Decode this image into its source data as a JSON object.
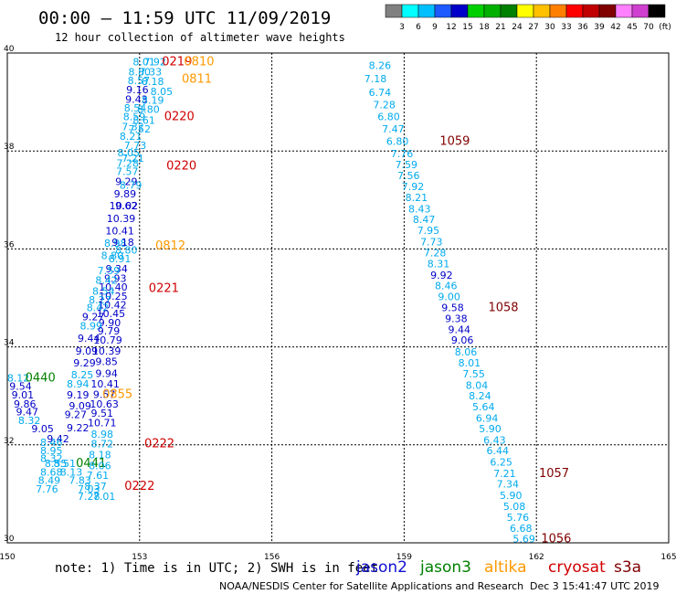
{
  "title": "00:00 – 11:59 UTC 11/09/2019",
  "subtitle": "12 hour collection of altimeter wave heights",
  "note": "note: 1) Time is in UTC; 2) SWH is in feet",
  "missions": [
    {
      "name": "jason2",
      "color": "#1010d0"
    },
    {
      "name": "jason3",
      "color": "#008000"
    },
    {
      "name": "altika",
      "color": "#ff9900"
    },
    {
      "name": "cryosat",
      "color": "#d00000"
    },
    {
      "name": "s3a",
      "color": "#800000"
    }
  ],
  "footer_left": "NOAA/NESDIS Center for Satellite Applications and Research",
  "footer_right": "Dec  3 15:41:47 UTC 2019",
  "colorbar": {
    "labels": [
      "3",
      "6",
      "9",
      "12",
      "15",
      "18",
      "21",
      "24",
      "27",
      "30",
      "33",
      "36",
      "39",
      "42",
      "45",
      "70",
      "(ft)"
    ],
    "colors": [
      "#808080",
      "#00ffff",
      "#00bfff",
      "#1e5aff",
      "#0000c8",
      "#00d000",
      "#00b000",
      "#008000",
      "#ffff00",
      "#ffc000",
      "#ff8000",
      "#ff0000",
      "#c00000",
      "#800000",
      "#ff80ff",
      "#d040d0",
      "#000000"
    ]
  },
  "chart_data": {
    "type": "scatter",
    "xlim": [
      150,
      165
    ],
    "ylim": [
      30,
      40
    ],
    "xticks": [
      "150",
      "153",
      "156",
      "159",
      "162",
      "165"
    ],
    "yticks": [
      "30",
      "32",
      "34",
      "36",
      "38",
      "40"
    ],
    "grid": true,
    "points": [
      {
        "x": 153.1,
        "y": 39.82,
        "v": "8.01",
        "c": "#00aaee"
      },
      {
        "x": 153.35,
        "y": 39.82,
        "v": "7.92",
        "c": "#00aaee"
      },
      {
        "x": 153.25,
        "y": 39.62,
        "v": "7.33",
        "c": "#00aaee"
      },
      {
        "x": 153.0,
        "y": 39.62,
        "v": "8.80",
        "c": "#00aaee"
      },
      {
        "x": 152.98,
        "y": 39.44,
        "v": "8.57",
        "c": "#00aaee"
      },
      {
        "x": 153.3,
        "y": 39.42,
        "v": "8.18",
        "c": "#00aaee"
      },
      {
        "x": 152.95,
        "y": 39.25,
        "v": "9.16",
        "c": "#0000c8"
      },
      {
        "x": 153.5,
        "y": 39.22,
        "v": "8.05",
        "c": "#00aaee"
      },
      {
        "x": 152.93,
        "y": 39.06,
        "v": "9.43",
        "c": "#0000c8"
      },
      {
        "x": 153.3,
        "y": 39.04,
        "v": "8.19",
        "c": "#00aaee"
      },
      {
        "x": 152.9,
        "y": 38.88,
        "v": "8.54",
        "c": "#00aaee"
      },
      {
        "x": 153.2,
        "y": 38.85,
        "v": "8.80",
        "c": "#00aaee"
      },
      {
        "x": 152.88,
        "y": 38.7,
        "v": "8.59",
        "c": "#00aaee"
      },
      {
        "x": 153.1,
        "y": 38.63,
        "v": "8.61",
        "c": "#00aaee"
      },
      {
        "x": 152.85,
        "y": 38.5,
        "v": "7.32",
        "c": "#00aaee"
      },
      {
        "x": 153.0,
        "y": 38.45,
        "v": "7.52",
        "c": "#00aaee"
      },
      {
        "x": 152.8,
        "y": 38.3,
        "v": "8.21",
        "c": "#00aaee"
      },
      {
        "x": 152.9,
        "y": 38.12,
        "v": "7.73",
        "c": "#00aaee"
      },
      {
        "x": 152.75,
        "y": 37.97,
        "v": "8.05",
        "c": "#00aaee"
      },
      {
        "x": 152.85,
        "y": 37.85,
        "v": "7.21",
        "c": "#00aaee"
      },
      {
        "x": 152.73,
        "y": 37.75,
        "v": "7.28",
        "c": "#00aaee"
      },
      {
        "x": 152.72,
        "y": 37.58,
        "v": "7.57",
        "c": "#00aaee"
      },
      {
        "x": 152.7,
        "y": 37.38,
        "v": "9.29",
        "c": "#0000c8"
      },
      {
        "x": 152.8,
        "y": 37.3,
        "v": "8.79",
        "c": "#00aaee"
      },
      {
        "x": 152.67,
        "y": 37.13,
        "v": "9.89",
        "c": "#0000c8"
      },
      {
        "x": 152.64,
        "y": 36.88,
        "v": "10.02",
        "c": "#0000c8"
      },
      {
        "x": 152.7,
        "y": 36.88,
        "v": "9.62",
        "c": "#0000c8"
      },
      {
        "x": 152.58,
        "y": 36.62,
        "v": "10.39",
        "c": "#0000c8"
      },
      {
        "x": 152.55,
        "y": 36.37,
        "v": "10.41",
        "c": "#0000c8"
      },
      {
        "x": 152.45,
        "y": 36.12,
        "v": "8.98",
        "c": "#00aaee"
      },
      {
        "x": 152.62,
        "y": 36.14,
        "v": "9.18",
        "c": "#0000c8"
      },
      {
        "x": 152.7,
        "y": 35.98,
        "v": "8.80",
        "c": "#00aaee"
      },
      {
        "x": 152.38,
        "y": 35.87,
        "v": "8.80",
        "c": "#00aaee"
      },
      {
        "x": 152.55,
        "y": 35.8,
        "v": "8.91",
        "c": "#00aaee"
      },
      {
        "x": 152.48,
        "y": 35.6,
        "v": "9.34",
        "c": "#0000c8"
      },
      {
        "x": 152.3,
        "y": 35.56,
        "v": "7.59",
        "c": "#00aaee"
      },
      {
        "x": 152.45,
        "y": 35.4,
        "v": "9.93",
        "c": "#0000c8"
      },
      {
        "x": 152.25,
        "y": 35.36,
        "v": "8.42",
        "c": "#00aaee"
      },
      {
        "x": 152.4,
        "y": 35.22,
        "v": "10.40",
        "c": "#0000c8"
      },
      {
        "x": 152.18,
        "y": 35.14,
        "v": "8.54",
        "c": "#00aaee"
      },
      {
        "x": 152.4,
        "y": 35.04,
        "v": "10.25",
        "c": "#0000c8"
      },
      {
        "x": 152.1,
        "y": 34.96,
        "v": "8.27",
        "c": "#00aaee"
      },
      {
        "x": 152.38,
        "y": 34.86,
        "v": "10.42",
        "c": "#0000c8"
      },
      {
        "x": 152.05,
        "y": 34.8,
        "v": "8.42",
        "c": "#00aaee"
      },
      {
        "x": 152.35,
        "y": 34.68,
        "v": "10.45",
        "c": "#0000c8"
      },
      {
        "x": 151.95,
        "y": 34.62,
        "v": "9.27",
        "c": "#0000c8"
      },
      {
        "x": 152.32,
        "y": 34.5,
        "v": "9.90",
        "c": "#0000c8"
      },
      {
        "x": 151.9,
        "y": 34.43,
        "v": "8.99",
        "c": "#00aaee"
      },
      {
        "x": 152.3,
        "y": 34.33,
        "v": "9.79",
        "c": "#0000c8"
      },
      {
        "x": 151.85,
        "y": 34.18,
        "v": "9.44",
        "c": "#0000c8"
      },
      {
        "x": 152.28,
        "y": 34.14,
        "v": "10.79",
        "c": "#0000c8"
      },
      {
        "x": 151.8,
        "y": 33.92,
        "v": "9.09",
        "c": "#0000c8"
      },
      {
        "x": 152.25,
        "y": 33.92,
        "v": "10.39",
        "c": "#0000c8"
      },
      {
        "x": 151.75,
        "y": 33.68,
        "v": "9.29",
        "c": "#0000c8"
      },
      {
        "x": 152.25,
        "y": 33.7,
        "v": "9.85",
        "c": "#0000c8"
      },
      {
        "x": 151.7,
        "y": 33.43,
        "v": "8.25",
        "c": "#00aaee"
      },
      {
        "x": 152.25,
        "y": 33.46,
        "v": "9.94",
        "c": "#0000c8"
      },
      {
        "x": 150.25,
        "y": 33.37,
        "v": "8.12",
        "c": "#00aaee"
      },
      {
        "x": 150.75,
        "y": 33.37,
        "v": "0440",
        "c": "#008000",
        "t": true
      },
      {
        "x": 151.6,
        "y": 33.25,
        "v": "8.94",
        "c": "#00aaee"
      },
      {
        "x": 152.22,
        "y": 33.25,
        "v": "10.41",
        "c": "#0000c8"
      },
      {
        "x": 150.3,
        "y": 33.2,
        "v": "9.54",
        "c": "#0000c8"
      },
      {
        "x": 152.2,
        "y": 33.03,
        "v": "9.57",
        "c": "#0000c8"
      },
      {
        "x": 152.5,
        "y": 33.03,
        "v": "0855",
        "c": "#ff9900",
        "t": true
      },
      {
        "x": 150.35,
        "y": 33.02,
        "v": "9.01",
        "c": "#0000c8"
      },
      {
        "x": 151.6,
        "y": 33.02,
        "v": "9.19",
        "c": "#0000c8"
      },
      {
        "x": 150.4,
        "y": 32.84,
        "v": "9.86",
        "c": "#0000c8"
      },
      {
        "x": 151.65,
        "y": 32.8,
        "v": "9.09",
        "c": "#0000c8"
      },
      {
        "x": 152.2,
        "y": 32.84,
        "v": "10.63",
        "c": "#0000c8"
      },
      {
        "x": 150.45,
        "y": 32.68,
        "v": "9.47",
        "c": "#0000c8"
      },
      {
        "x": 151.55,
        "y": 32.62,
        "v": "9.27",
        "c": "#0000c8"
      },
      {
        "x": 152.15,
        "y": 32.65,
        "v": "9.51",
        "c": "#0000c8"
      },
      {
        "x": 150.5,
        "y": 32.5,
        "v": "8.32",
        "c": "#00aaee"
      },
      {
        "x": 151.6,
        "y": 32.35,
        "v": "9.22",
        "c": "#0000c8"
      },
      {
        "x": 152.15,
        "y": 32.45,
        "v": "10.71",
        "c": "#0000c8"
      },
      {
        "x": 150.8,
        "y": 32.33,
        "v": "9.05",
        "c": "#0000c8"
      },
      {
        "x": 151.15,
        "y": 32.13,
        "v": "9.42",
        "c": "#0000c8"
      },
      {
        "x": 152.15,
        "y": 32.22,
        "v": "8.98",
        "c": "#00aaee"
      },
      {
        "x": 151.0,
        "y": 32.05,
        "v": "8.46",
        "c": "#00aaee"
      },
      {
        "x": 152.15,
        "y": 32.02,
        "v": "8.72",
        "c": "#00aaee"
      },
      {
        "x": 153.45,
        "y": 32.02,
        "v": "0222",
        "c": "#d00000",
        "t": true
      },
      {
        "x": 151.0,
        "y": 31.88,
        "v": "8.95",
        "c": "#00aaee"
      },
      {
        "x": 151.0,
        "y": 31.73,
        "v": "8.32",
        "c": "#00aaee"
      },
      {
        "x": 152.1,
        "y": 31.8,
        "v": "8.18",
        "c": "#00aaee"
      },
      {
        "x": 151.1,
        "y": 31.62,
        "v": "8.55",
        "c": "#00aaee"
      },
      {
        "x": 151.3,
        "y": 31.62,
        "v": "8.51",
        "c": "#00aaee"
      },
      {
        "x": 151.9,
        "y": 31.62,
        "v": "0441",
        "c": "#008000",
        "t": true
      },
      {
        "x": 152.1,
        "y": 31.58,
        "v": "8.06",
        "c": "#00aaee"
      },
      {
        "x": 151.0,
        "y": 31.45,
        "v": "8.68",
        "c": "#00aaee"
      },
      {
        "x": 151.45,
        "y": 31.45,
        "v": "8.13",
        "c": "#00aaee"
      },
      {
        "x": 152.05,
        "y": 31.38,
        "v": "7.61",
        "c": "#00aaee"
      },
      {
        "x": 150.95,
        "y": 31.28,
        "v": "8.49",
        "c": "#00aaee"
      },
      {
        "x": 151.65,
        "y": 31.28,
        "v": "7.83",
        "c": "#00aaee"
      },
      {
        "x": 152.0,
        "y": 31.16,
        "v": "8.37",
        "c": "#00aaee"
      },
      {
        "x": 153.0,
        "y": 31.16,
        "v": "0222",
        "c": "#d00000",
        "t": true
      },
      {
        "x": 150.9,
        "y": 31.1,
        "v": "7.76",
        "c": "#00aaee"
      },
      {
        "x": 151.85,
        "y": 31.1,
        "v": "7.03",
        "c": "#00aaee"
      },
      {
        "x": 151.85,
        "y": 30.95,
        "v": "7.28",
        "c": "#00aaee"
      },
      {
        "x": 152.2,
        "y": 30.95,
        "v": "7.01",
        "c": "#00aaee"
      },
      {
        "x": 153.85,
        "y": 39.82,
        "v": "0219",
        "c": "#d00000",
        "t": true
      },
      {
        "x": 154.35,
        "y": 39.82,
        "v": "0810",
        "c": "#ff9900",
        "t": true
      },
      {
        "x": 154.3,
        "y": 39.47,
        "v": "0811",
        "c": "#ff9900",
        "t": true
      },
      {
        "x": 153.9,
        "y": 38.7,
        "v": "0220",
        "c": "#d00000",
        "t": true
      },
      {
        "x": 153.95,
        "y": 37.7,
        "v": "0220",
        "c": "#d00000",
        "t": true
      },
      {
        "x": 153.7,
        "y": 36.06,
        "v": "0812",
        "c": "#ff9900",
        "t": true
      },
      {
        "x": 153.55,
        "y": 35.2,
        "v": "0221",
        "c": "#d00000",
        "t": true
      },
      {
        "x": 158.45,
        "y": 39.75,
        "v": "8.26",
        "c": "#00aaee"
      },
      {
        "x": 158.35,
        "y": 39.48,
        "v": "7.18",
        "c": "#00aaee"
      },
      {
        "x": 158.45,
        "y": 39.2,
        "v": "6.74",
        "c": "#00aaee"
      },
      {
        "x": 158.55,
        "y": 38.95,
        "v": "7.28",
        "c": "#00aaee"
      },
      {
        "x": 158.65,
        "y": 38.7,
        "v": "6.80",
        "c": "#00aaee"
      },
      {
        "x": 158.75,
        "y": 38.45,
        "v": "7.47",
        "c": "#00aaee"
      },
      {
        "x": 158.85,
        "y": 38.2,
        "v": "6.80",
        "c": "#00aaee"
      },
      {
        "x": 160.15,
        "y": 38.2,
        "v": "1059",
        "c": "#800000",
        "t": true
      },
      {
        "x": 158.95,
        "y": 37.95,
        "v": "7.76",
        "c": "#00aaee"
      },
      {
        "x": 159.05,
        "y": 37.72,
        "v": "7.59",
        "c": "#00aaee"
      },
      {
        "x": 159.1,
        "y": 37.5,
        "v": "7.56",
        "c": "#00aaee"
      },
      {
        "x": 159.2,
        "y": 37.28,
        "v": "7.92",
        "c": "#00aaee"
      },
      {
        "x": 159.28,
        "y": 37.05,
        "v": "8.21",
        "c": "#00aaee"
      },
      {
        "x": 159.35,
        "y": 36.82,
        "v": "8.43",
        "c": "#00aaee"
      },
      {
        "x": 159.45,
        "y": 36.6,
        "v": "8.47",
        "c": "#00aaee"
      },
      {
        "x": 159.55,
        "y": 36.38,
        "v": "7.95",
        "c": "#00aaee"
      },
      {
        "x": 159.62,
        "y": 36.15,
        "v": "7.73",
        "c": "#00aaee"
      },
      {
        "x": 159.7,
        "y": 35.92,
        "v": "7.28",
        "c": "#00aaee"
      },
      {
        "x": 159.78,
        "y": 35.7,
        "v": "8.31",
        "c": "#00aaee"
      },
      {
        "x": 159.85,
        "y": 35.47,
        "v": "9.92",
        "c": "#0000c8"
      },
      {
        "x": 159.95,
        "y": 35.25,
        "v": "8.46",
        "c": "#00aaee"
      },
      {
        "x": 160.02,
        "y": 35.03,
        "v": "9.00",
        "c": "#00aaee"
      },
      {
        "x": 160.1,
        "y": 34.8,
        "v": "9.58",
        "c": "#0000c8"
      },
      {
        "x": 161.25,
        "y": 34.8,
        "v": "1058",
        "c": "#800000",
        "t": true
      },
      {
        "x": 160.18,
        "y": 34.58,
        "v": "9.38",
        "c": "#0000c8"
      },
      {
        "x": 160.25,
        "y": 34.36,
        "v": "9.44",
        "c": "#0000c8"
      },
      {
        "x": 160.32,
        "y": 34.14,
        "v": "9.06",
        "c": "#0000c8"
      },
      {
        "x": 160.4,
        "y": 33.9,
        "v": "8.06",
        "c": "#00aaee"
      },
      {
        "x": 160.48,
        "y": 33.68,
        "v": "8.01",
        "c": "#00aaee"
      },
      {
        "x": 160.58,
        "y": 33.45,
        "v": "7.55",
        "c": "#00aaee"
      },
      {
        "x": 160.65,
        "y": 33.22,
        "v": "8.04",
        "c": "#00aaee"
      },
      {
        "x": 160.72,
        "y": 33.0,
        "v": "8.24",
        "c": "#00aaee"
      },
      {
        "x": 160.8,
        "y": 32.78,
        "v": "5.64",
        "c": "#00aaee"
      },
      {
        "x": 160.88,
        "y": 32.55,
        "v": "6.94",
        "c": "#00aaee"
      },
      {
        "x": 160.95,
        "y": 32.33,
        "v": "5.90",
        "c": "#00aaee"
      },
      {
        "x": 161.05,
        "y": 32.1,
        "v": "6.43",
        "c": "#00aaee"
      },
      {
        "x": 161.12,
        "y": 31.88,
        "v": "6.44",
        "c": "#00aaee"
      },
      {
        "x": 161.2,
        "y": 31.65,
        "v": "6.25",
        "c": "#00aaee"
      },
      {
        "x": 161.28,
        "y": 31.42,
        "v": "7.21",
        "c": "#00aaee"
      },
      {
        "x": 162.4,
        "y": 31.42,
        "v": "1057",
        "c": "#800000",
        "t": true
      },
      {
        "x": 161.35,
        "y": 31.2,
        "v": "7.34",
        "c": "#00aaee"
      },
      {
        "x": 161.42,
        "y": 30.97,
        "v": "5.90",
        "c": "#00aaee"
      },
      {
        "x": 161.5,
        "y": 30.75,
        "v": "5.08",
        "c": "#00aaee"
      },
      {
        "x": 161.58,
        "y": 30.52,
        "v": "5.76",
        "c": "#00aaee"
      },
      {
        "x": 161.65,
        "y": 30.3,
        "v": "6.68",
        "c": "#00aaee"
      },
      {
        "x": 161.72,
        "y": 30.08,
        "v": "5.69",
        "c": "#00aaee"
      },
      {
        "x": 162.45,
        "y": 30.08,
        "v": "1056",
        "c": "#800000",
        "t": true
      }
    ]
  }
}
